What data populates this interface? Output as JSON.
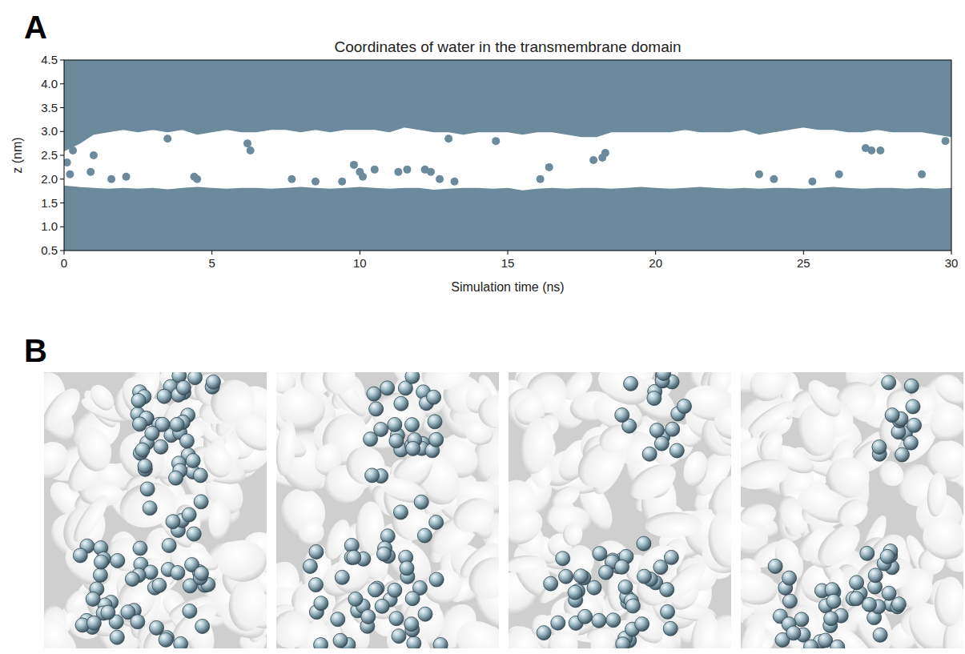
{
  "figure": {
    "panel_labels": [
      "A",
      "B"
    ]
  },
  "chart_data": {
    "type": "scatter",
    "title": "Coordinates of water in the transmembrane domain",
    "x_label": "Simulation time (ns)",
    "y_label": "z (nm)",
    "xlim": [
      0,
      30
    ],
    "ylim": [
      0.5,
      4.5
    ],
    "xticks": [
      0,
      5,
      10,
      15,
      20,
      25,
      30
    ],
    "yticks": [
      0.5,
      {
        "value": 1,
        "label": "1.0"
      },
      1.5,
      {
        "value": 2,
        "label": "2.0"
      },
      2.5,
      {
        "value": 3,
        "label": "3.0"
      },
      3.5,
      {
        "value": 4,
        "label": "4.0"
      },
      4.5
    ],
    "grid": false,
    "color": "#6b8a9c",
    "x": [
      0,
      0.5,
      1,
      1.5,
      2,
      2.5,
      3,
      3.5,
      4,
      4.5,
      5,
      5.5,
      6,
      6.5,
      7,
      7.5,
      8,
      8.5,
      9,
      9.5,
      10,
      10.5,
      11,
      11.5,
      12,
      12.5,
      13,
      13.5,
      14,
      14.5,
      15,
      15.5,
      16,
      16.5,
      17,
      17.5,
      18,
      18.5,
      19,
      19.5,
      20,
      20.5,
      21,
      21.5,
      22,
      22.5,
      23,
      23.5,
      24,
      24.5,
      25,
      25.5,
      26,
      26.5,
      27,
      27.5,
      28,
      28.5,
      29,
      29.5,
      30
    ],
    "series": [
      {
        "type": "area",
        "base": 0.5,
        "values": [
          1.85,
          1.82,
          1.8,
          1.78,
          1.8,
          1.78,
          1.8,
          1.77,
          1.8,
          1.82,
          1.8,
          1.78,
          1.8,
          1.8,
          1.78,
          1.8,
          1.82,
          1.8,
          1.78,
          1.8,
          1.82,
          1.8,
          1.78,
          1.8,
          1.8,
          1.76,
          1.78,
          1.8,
          1.8,
          1.78,
          1.8,
          1.75,
          1.78,
          1.8,
          1.78,
          1.8,
          1.8,
          1.78,
          1.8,
          1.82,
          1.8,
          1.78,
          1.8,
          1.82,
          1.8,
          1.78,
          1.8,
          1.78,
          1.8,
          1.8,
          1.78,
          1.8,
          1.82,
          1.8,
          1.78,
          1.8,
          1.8,
          1.78,
          1.8,
          1.78,
          1.8
        ]
      },
      {
        "type": "area",
        "base": 4.5,
        "values": [
          2.6,
          2.75,
          2.95,
          3.0,
          3.05,
          3.0,
          3.05,
          3.0,
          3.05,
          2.95,
          3.0,
          3.05,
          3.0,
          3.0,
          3.05,
          3.05,
          3.0,
          3.05,
          3.0,
          3.05,
          3.05,
          3.05,
          3.0,
          3.1,
          3.05,
          3.0,
          3.0,
          2.95,
          3.0,
          3.0,
          3.0,
          2.95,
          3.0,
          3.0,
          2.95,
          2.9,
          2.9,
          3.0,
          3.0,
          3.0,
          3.0,
          3.0,
          3.05,
          3.0,
          3.0,
          3.0,
          3.05,
          2.95,
          3.0,
          3.05,
          3.1,
          3.05,
          3.05,
          3.0,
          3.0,
          3.05,
          3.0,
          3.0,
          3.0,
          2.95,
          2.9
        ]
      },
      {
        "type": "scatter",
        "marker": "circle",
        "x": [
          0.1,
          0.2,
          0.3,
          0.9,
          1.0,
          1.6,
          2.1,
          3.5,
          4.4,
          4.5,
          6.2,
          6.3,
          7.7,
          8.5,
          9.4,
          9.8,
          10.0,
          10.1,
          10.5,
          11.3,
          11.6,
          12.2,
          12.4,
          12.7,
          13.0,
          13.2,
          14.6,
          16.1,
          16.4,
          17.9,
          18.2,
          18.3,
          23.5,
          24.0,
          25.3,
          26.2,
          27.1,
          27.3,
          27.6,
          29.0,
          29.8
        ],
        "values": [
          2.35,
          2.1,
          2.6,
          2.15,
          2.5,
          2.0,
          2.05,
          2.85,
          2.05,
          2.0,
          2.75,
          2.6,
          2.0,
          1.95,
          1.95,
          2.3,
          2.15,
          2.05,
          2.2,
          2.15,
          2.2,
          2.2,
          2.15,
          2.0,
          2.85,
          1.95,
          2.8,
          2.0,
          2.25,
          2.4,
          2.45,
          2.55,
          2.1,
          2.0,
          1.95,
          2.1,
          2.65,
          2.6,
          2.6,
          2.1,
          2.8
        ]
      }
    ]
  }
}
